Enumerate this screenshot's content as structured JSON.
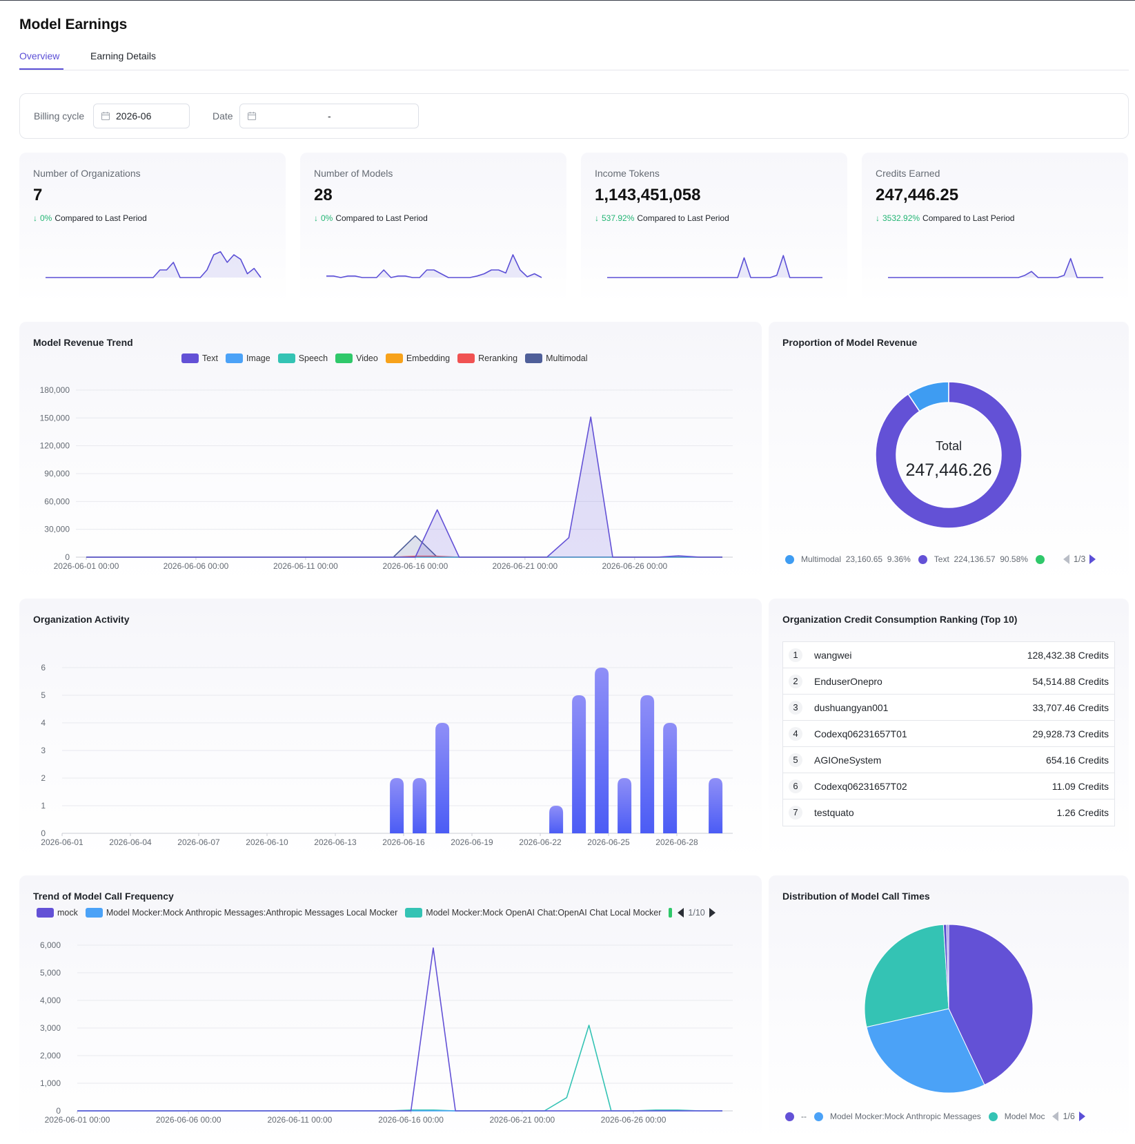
{
  "page": {
    "title": "Model Earnings"
  },
  "tabs": [
    {
      "label": "Overview",
      "active": true
    },
    {
      "label": "Earning Details",
      "active": false
    }
  ],
  "filters": {
    "billing_cycle_label": "Billing cycle",
    "billing_cycle_value": "2026-06",
    "date_label": "Date",
    "date_range_separator": "-"
  },
  "colors": {
    "accent": "#5b4fd6",
    "positive": "#22b573",
    "bar_top": "#8f8ff7",
    "bar_bottom": "#4b5cf5"
  },
  "stats": [
    {
      "label": "Number of Organizations",
      "value": "7",
      "change": "0%",
      "compare_text": "Compared to Last Period",
      "arrow": "↓",
      "sparkline": [
        0,
        0,
        0,
        0,
        0,
        0,
        0,
        0,
        0,
        0,
        0,
        0,
        0,
        0,
        0,
        0,
        0,
        1,
        1,
        2,
        0,
        0,
        0,
        0,
        1,
        3,
        3.4,
        2,
        3,
        2.4,
        0.5,
        1.2,
        0
      ]
    },
    {
      "label": "Number of Models",
      "value": "28",
      "change": "0%",
      "compare_text": "Compared to Last Period",
      "arrow": "↓",
      "sparkline": [
        0.2,
        0.2,
        0,
        0.2,
        0.2,
        0,
        0,
        0,
        1,
        0,
        0.2,
        0.2,
        0,
        0,
        1,
        1,
        0.5,
        0,
        0,
        0,
        0,
        0.2,
        0.5,
        1,
        1,
        0.6,
        3,
        1,
        0.1,
        0.5,
        0
      ]
    },
    {
      "label": "Income Tokens",
      "value": "1,143,451,058",
      "change": "537.92%",
      "compare_text": "Compared to Last Period",
      "arrow": "↓",
      "sparkline": [
        0,
        0,
        0,
        0,
        0,
        0,
        0,
        0,
        0,
        0,
        0,
        0,
        0,
        0,
        0,
        0,
        0,
        0,
        0,
        0,
        0,
        2.6,
        0,
        0,
        0,
        0,
        0.3,
        2.9,
        0,
        0,
        0,
        0,
        0,
        0
      ]
    },
    {
      "label": "Credits Earned",
      "value": "247,446.25",
      "change": "3532.92%",
      "compare_text": "Compared to Last Period",
      "arrow": "↓",
      "sparkline": [
        0,
        0,
        0,
        0,
        0,
        0,
        0,
        0,
        0,
        0,
        0,
        0,
        0,
        0,
        0,
        0,
        0,
        0,
        0,
        0,
        0,
        0.3,
        0.8,
        0,
        0,
        0,
        0,
        0.3,
        2.5,
        0,
        0,
        0,
        0,
        0
      ]
    }
  ],
  "revenue_trend": {
    "title": "Model Revenue Trend",
    "legend": [
      {
        "name": "Text",
        "color": "#6351d6"
      },
      {
        "name": "Image",
        "color": "#4ba2f7"
      },
      {
        "name": "Speech",
        "color": "#34c3b4"
      },
      {
        "name": "Video",
        "color": "#2fc86a"
      },
      {
        "name": "Embedding",
        "color": "#f7a21b"
      },
      {
        "name": "Reranking",
        "color": "#f05252"
      },
      {
        "name": "Multimodal",
        "color": "#4f5f99"
      }
    ]
  },
  "proportion": {
    "title": "Proportion of Model Revenue",
    "center_label": "Total",
    "center_value": "247,446.26",
    "legend": [
      {
        "name": "Multimodal",
        "value": "23,160.65",
        "percent": "9.36%",
        "color": "#3e9cf2"
      },
      {
        "name": "Text",
        "value": "224,136.57",
        "percent": "90.58%",
        "color": "#6351d6"
      },
      {
        "name": "",
        "value": "",
        "percent": "",
        "color": "#2fc86a"
      }
    ],
    "pager": "1/3"
  },
  "activity": {
    "title": "Organization Activity"
  },
  "ranking": {
    "title": "Organization Credit Consumption Ranking (Top 10)",
    "rows": [
      {
        "rank": "1",
        "name": "wangwei",
        "credits": "128,432.38 Credits"
      },
      {
        "rank": "2",
        "name": "EnduserOnepro",
        "credits": "54,514.88 Credits"
      },
      {
        "rank": "3",
        "name": "dushuangyan001",
        "credits": "33,707.46 Credits"
      },
      {
        "rank": "4",
        "name": "Codexq06231657T01",
        "credits": "29,928.73 Credits"
      },
      {
        "rank": "5",
        "name": "AGIOneSystem",
        "credits": "654.16 Credits"
      },
      {
        "rank": "6",
        "name": "Codexq06231657T02",
        "credits": "11.09 Credits"
      },
      {
        "rank": "7",
        "name": "testquato",
        "credits": "1.26 Credits"
      }
    ]
  },
  "call_frequency": {
    "title": "Trend of Model Call Frequency",
    "legend": [
      {
        "name": "mock",
        "color": "#6351d6"
      },
      {
        "name": "Model Mocker:Mock Anthropic Messages:Anthropic Messages Local Mocker",
        "color": "#4ba2f7"
      },
      {
        "name": "Model Mocker:Mock OpenAI Chat:OpenAI Chat Local Mocker",
        "color": "#34c3b4"
      }
    ],
    "pager": "1/10"
  },
  "call_distribution": {
    "title": "Distribution of Model Call Times",
    "legend": [
      {
        "name": "--",
        "color": "#6351d6"
      },
      {
        "name": "Model Mocker:Mock Anthropic Messages",
        "color": "#4ba2f7"
      },
      {
        "name": "Model Moc",
        "color": "#34c3b4"
      }
    ],
    "pager": "1/6"
  },
  "chart_data": [
    {
      "type": "area",
      "title": "Model Revenue Trend",
      "x_ticks": [
        "2026-06-01 00:00",
        "2026-06-06 00:00",
        "2026-06-11 00:00",
        "2026-06-16 00:00",
        "2026-06-21 00:00",
        "2026-06-26 00:00"
      ],
      "x": [
        "2026-06-01",
        "2026-06-02",
        "2026-06-03",
        "2026-06-04",
        "2026-06-05",
        "2026-06-06",
        "2026-06-07",
        "2026-06-08",
        "2026-06-09",
        "2026-06-10",
        "2026-06-11",
        "2026-06-12",
        "2026-06-13",
        "2026-06-14",
        "2026-06-15",
        "2026-06-16",
        "2026-06-17",
        "2026-06-18",
        "2026-06-19",
        "2026-06-20",
        "2026-06-21",
        "2026-06-22",
        "2026-06-23",
        "2026-06-24",
        "2026-06-25",
        "2026-06-26",
        "2026-06-27",
        "2026-06-28",
        "2026-06-29",
        "2026-06-30"
      ],
      "ylim": [
        0,
        180000
      ],
      "y_ticks": [
        "0",
        "30,000",
        "60,000",
        "90,000",
        "120,000",
        "150,000",
        "180,000"
      ],
      "grid": true,
      "legend_position": "top",
      "series": [
        {
          "name": "Text",
          "color": "#6351d6",
          "values": [
            0,
            0,
            0,
            0,
            0,
            0,
            0,
            0,
            0,
            0,
            0,
            0,
            0,
            0,
            0,
            0,
            51000,
            0,
            0,
            0,
            0,
            0,
            21000,
            151000,
            0,
            0,
            0,
            1500,
            0,
            0
          ]
        },
        {
          "name": "Image",
          "color": "#4ba2f7",
          "values": [
            0,
            0,
            0,
            0,
            0,
            0,
            0,
            0,
            0,
            0,
            0,
            0,
            0,
            0,
            0,
            0,
            0,
            0,
            0,
            0,
            0,
            0,
            0,
            0,
            0,
            0,
            0,
            0,
            0,
            0
          ]
        },
        {
          "name": "Speech",
          "color": "#34c3b4",
          "values": [
            0,
            0,
            0,
            0,
            0,
            0,
            0,
            0,
            0,
            0,
            0,
            0,
            0,
            0,
            0,
            0,
            0,
            0,
            0,
            0,
            0,
            0,
            0,
            0,
            0,
            0,
            0,
            0,
            0,
            0
          ]
        },
        {
          "name": "Video",
          "color": "#2fc86a",
          "values": [
            0,
            0,
            0,
            0,
            0,
            0,
            0,
            0,
            0,
            0,
            0,
            0,
            0,
            0,
            0,
            0,
            0,
            0,
            0,
            0,
            0,
            0,
            0,
            0,
            0,
            0,
            0,
            0,
            0,
            0
          ]
        },
        {
          "name": "Embedding",
          "color": "#f7a21b",
          "values": [
            0,
            0,
            0,
            0,
            0,
            0,
            0,
            0,
            0,
            0,
            0,
            0,
            0,
            0,
            0,
            0,
            0,
            0,
            0,
            0,
            0,
            0,
            0,
            0,
            0,
            0,
            0,
            0,
            0,
            0
          ]
        },
        {
          "name": "Reranking",
          "color": "#f05252",
          "values": [
            0,
            0,
            0,
            0,
            0,
            0,
            0,
            0,
            0,
            0,
            0,
            0,
            0,
            0,
            0,
            1000,
            1000,
            0,
            0,
            0,
            0,
            0,
            0,
            0,
            0,
            0,
            0,
            0,
            0,
            0
          ]
        },
        {
          "name": "Multimodal",
          "color": "#4f5f99",
          "values": [
            0,
            0,
            0,
            0,
            0,
            0,
            0,
            0,
            0,
            0,
            0,
            0,
            0,
            0,
            0,
            23000,
            0,
            0,
            0,
            0,
            0,
            0,
            0,
            0,
            0,
            0,
            0,
            0,
            0,
            0
          ]
        }
      ]
    },
    {
      "type": "pie",
      "title": "Proportion of Model Revenue",
      "donut": true,
      "slices": [
        {
          "name": "Multimodal",
          "value": 23160.65,
          "percent": 9.36,
          "color": "#3e9cf2"
        },
        {
          "name": "Text",
          "value": 224136.57,
          "percent": 90.58,
          "color": "#6351d6"
        }
      ]
    },
    {
      "type": "bar",
      "title": "Organization Activity",
      "x_ticks": [
        "2026-06-01",
        "2026-06-04",
        "2026-06-07",
        "2026-06-10",
        "2026-06-13",
        "2026-06-16",
        "2026-06-19",
        "2026-06-22",
        "2026-06-25",
        "2026-06-28"
      ],
      "x": [
        "2026-06-01",
        "2026-06-02",
        "2026-06-03",
        "2026-06-04",
        "2026-06-05",
        "2026-06-06",
        "2026-06-07",
        "2026-06-08",
        "2026-06-09",
        "2026-06-10",
        "2026-06-11",
        "2026-06-12",
        "2026-06-13",
        "2026-06-14",
        "2026-06-15",
        "2026-06-16",
        "2026-06-17",
        "2026-06-18",
        "2026-06-19",
        "2026-06-20",
        "2026-06-21",
        "2026-06-22",
        "2026-06-23",
        "2026-06-24",
        "2026-06-25",
        "2026-06-26",
        "2026-06-27",
        "2026-06-28",
        "2026-06-29"
      ],
      "values": [
        0,
        0,
        0,
        0,
        0,
        0,
        0,
        0,
        0,
        0,
        0,
        0,
        0,
        0,
        2,
        2,
        4,
        0,
        0,
        0,
        0,
        1,
        5,
        6,
        2,
        5,
        4,
        0,
        2
      ],
      "ylim": [
        0,
        6
      ],
      "y_ticks": [
        "0",
        "1",
        "2",
        "3",
        "4",
        "5",
        "6"
      ],
      "grid": true
    },
    {
      "type": "line",
      "title": "Trend of Model Call Frequency",
      "x_ticks": [
        "2026-06-01 00:00",
        "2026-06-06 00:00",
        "2026-06-11 00:00",
        "2026-06-16 00:00",
        "2026-06-21 00:00",
        "2026-06-26 00:00"
      ],
      "x": [
        "2026-06-01",
        "2026-06-02",
        "2026-06-03",
        "2026-06-04",
        "2026-06-05",
        "2026-06-06",
        "2026-06-07",
        "2026-06-08",
        "2026-06-09",
        "2026-06-10",
        "2026-06-11",
        "2026-06-12",
        "2026-06-13",
        "2026-06-14",
        "2026-06-15",
        "2026-06-16",
        "2026-06-17",
        "2026-06-18",
        "2026-06-19",
        "2026-06-20",
        "2026-06-21",
        "2026-06-22",
        "2026-06-23",
        "2026-06-24",
        "2026-06-25",
        "2026-06-26",
        "2026-06-27",
        "2026-06-28",
        "2026-06-29",
        "2026-06-30"
      ],
      "ylim": [
        0,
        6000
      ],
      "y_ticks": [
        "0",
        "1,000",
        "2,000",
        "3,000",
        "4,000",
        "5,000",
        "6,000"
      ],
      "grid": true,
      "legend_position": "top",
      "series": [
        {
          "name": "mock",
          "color": "#6351d6",
          "values": [
            0,
            0,
            0,
            0,
            0,
            0,
            0,
            0,
            0,
            0,
            0,
            0,
            0,
            0,
            0,
            0,
            5900,
            0,
            0,
            0,
            0,
            0,
            0,
            0,
            0,
            0,
            0,
            0,
            0,
            0
          ]
        },
        {
          "name": "Model Mocker:Mock Anthropic Messages:Anthropic Messages Local Mocker",
          "color": "#4ba2f7",
          "values": [
            0,
            0,
            0,
            0,
            0,
            0,
            0,
            0,
            0,
            0,
            0,
            0,
            0,
            0,
            0,
            0,
            0,
            0,
            0,
            0,
            0,
            0,
            0,
            0,
            0,
            0,
            0,
            0,
            0,
            0
          ]
        },
        {
          "name": "Model Mocker:Mock OpenAI Chat:OpenAI Chat Local Mocker",
          "color": "#34c3b4",
          "values": [
            0,
            0,
            0,
            0,
            0,
            0,
            0,
            0,
            0,
            0,
            0,
            0,
            0,
            0,
            0,
            30,
            30,
            0,
            0,
            0,
            0,
            0,
            480,
            3100,
            0,
            0,
            30,
            30,
            0,
            0
          ]
        }
      ]
    },
    {
      "type": "pie",
      "title": "Distribution of Model Call Times",
      "slices": [
        {
          "name": "--",
          "value": 43,
          "color": "#6351d6"
        },
        {
          "name": "Model Mocker:Mock Anthropic Messages",
          "value": 28.5,
          "color": "#4ba2f7"
        },
        {
          "name": "Model Moc",
          "value": 27.5,
          "color": "#34c3b4"
        },
        {
          "name": "",
          "value": 0.6,
          "color": "#5a4fcf"
        },
        {
          "name": "",
          "value": 0.4,
          "color": "#9a8fe6"
        }
      ]
    }
  ]
}
